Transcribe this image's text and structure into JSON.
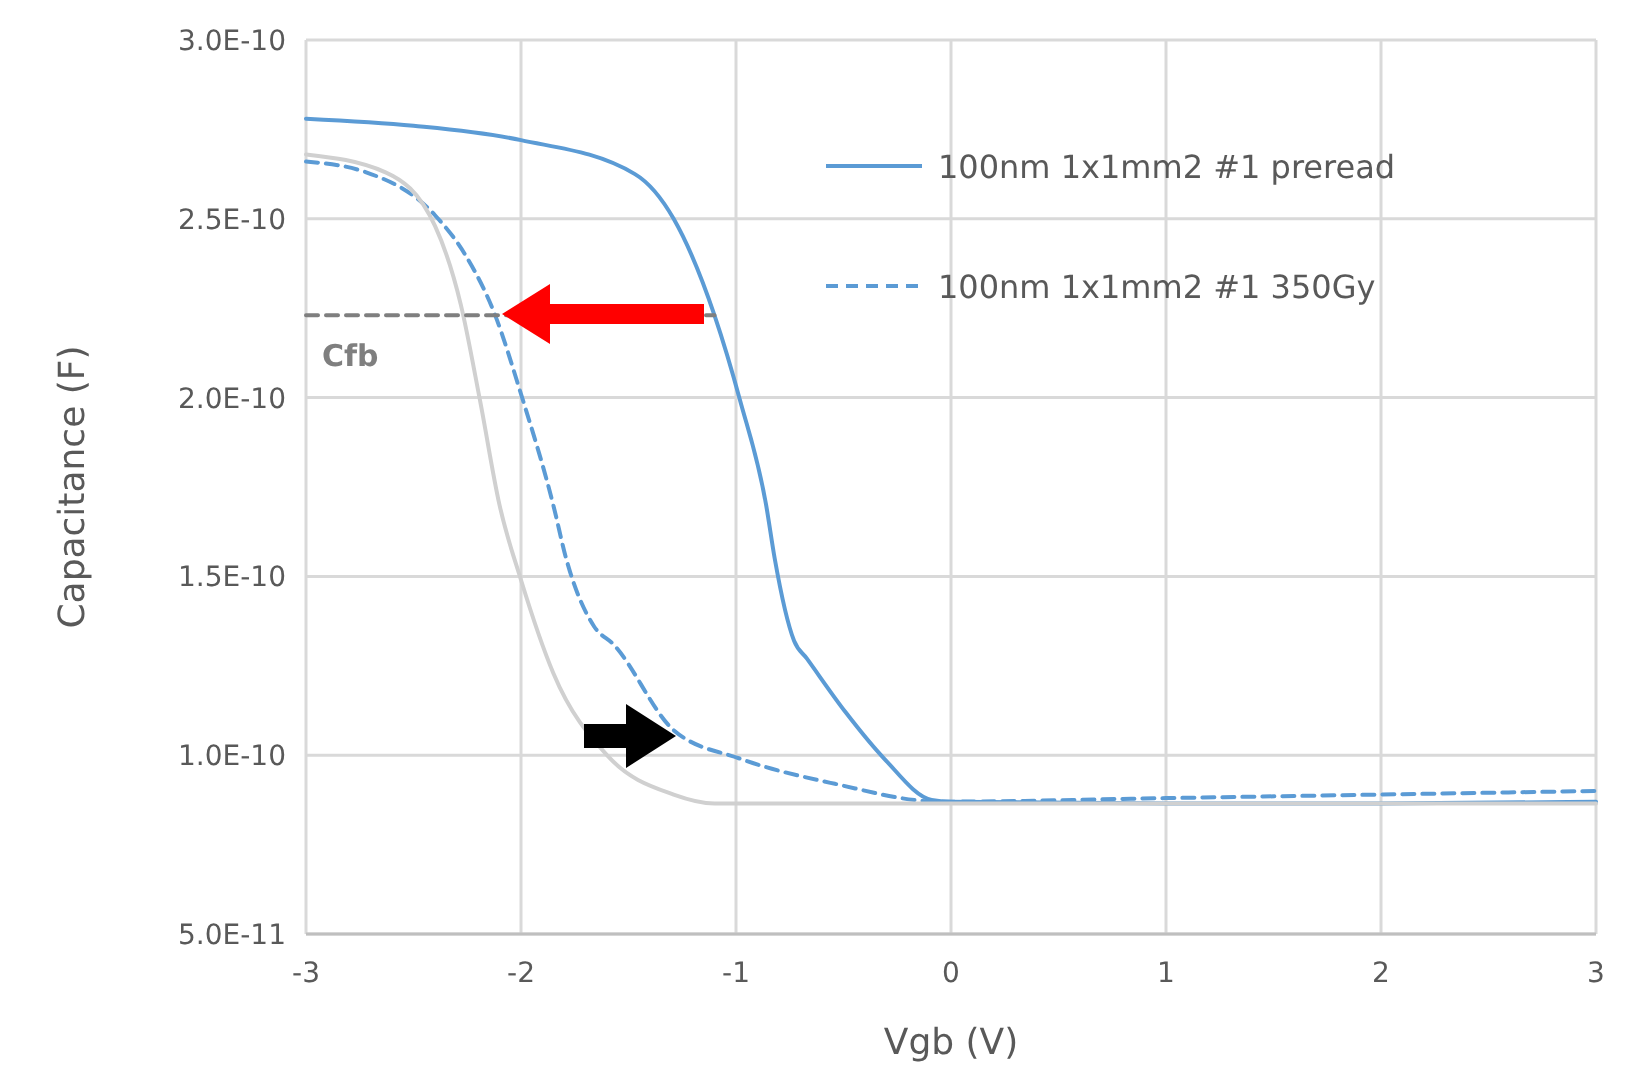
{
  "chart_data": {
    "type": "line",
    "xlabel": "Vgb (V)",
    "ylabel": "Capacitance (F)",
    "xlim": [
      -3,
      3
    ],
    "xticks": [
      -3,
      -2,
      -1,
      0,
      1,
      2,
      3
    ],
    "ylim": [
      5e-11,
      3e-10
    ],
    "yticks": [
      {
        "value": 5e-11,
        "label": "5.0E-11"
      },
      {
        "value": 1e-10,
        "label": "1.0E-10"
      },
      {
        "value": 1.5e-10,
        "label": "1.5E-10"
      },
      {
        "value": 2e-10,
        "label": "2.0E-10"
      },
      {
        "value": 2.5e-10,
        "label": "2.5E-10"
      },
      {
        "value": 3e-10,
        "label": "3.0E-10"
      }
    ],
    "grid": true,
    "legend": "top right",
    "marker": "none",
    "series": [
      {
        "name": "100nm 1x1mm2 #1 preread",
        "color": "#5b9bd5",
        "line_style": "solid",
        "x": [
          -3,
          -2.5,
          -2,
          -1.47,
          -1.29,
          -1.1,
          -0.98,
          -0.86,
          -0.82,
          -0.73,
          -0.67,
          -0.49,
          -0.31,
          -0.09,
          0,
          1,
          2,
          3
        ],
        "values": [
          2.78e-10,
          2.76e-10,
          2.72e-10,
          2.625e-10,
          2.5e-10,
          2.23e-10,
          1.99e-10,
          1.7e-10,
          1.55e-10,
          1.32e-10,
          1.27e-10,
          1.12e-10,
          9.9e-11,
          8.75e-11,
          8.7e-11,
          8.65e-11,
          8.65e-11,
          8.7e-11
        ]
      },
      {
        "name": "100nm 1x1mm2 #1 350Gy",
        "color": "#5b9bd5",
        "line_style": "dashed",
        "x": [
          -3,
          -2.72,
          -2.4,
          -2.26,
          -2.12,
          -2,
          -1.85,
          -1.79,
          -1.66,
          -1.57,
          -1.29,
          -0.98,
          -0.54,
          -0.05,
          1,
          2,
          3
        ],
        "values": [
          2.66e-10,
          2.63e-10,
          2.51e-10,
          2.4e-10,
          2.23e-10,
          2.01e-10,
          1.7e-10,
          1.55e-10,
          1.36e-10,
          1.31e-10,
          1.07e-10,
          9.9e-11,
          9.2e-11,
          8.7e-11,
          8.8e-11,
          8.9e-11,
          9e-11
        ]
      },
      {
        "color": "#d0d0d0",
        "line_style": "solid",
        "x": [
          -3,
          -2.63,
          -2.4,
          -2.28,
          -2.19,
          -2.1,
          -2,
          -1.85,
          -1.6,
          -1.29,
          -1.1,
          0,
          1,
          2,
          3
        ],
        "values": [
          2.68e-10,
          2.63e-10,
          2.48e-10,
          2.26e-10,
          1.99e-10,
          1.7e-10,
          1.49e-10,
          1.23e-10,
          1e-10,
          8.9e-11,
          8.65e-11,
          8.65e-11,
          8.65e-11,
          8.65e-11,
          8.65e-11
        ]
      },
      {
        "color": "#7f7f7f",
        "line_style": "dashed",
        "x": [
          -3,
          -1.1
        ],
        "values": [
          2.23e-10,
          2.23e-10
        ]
      }
    ],
    "annotations": [
      "Cfb"
    ]
  }
}
